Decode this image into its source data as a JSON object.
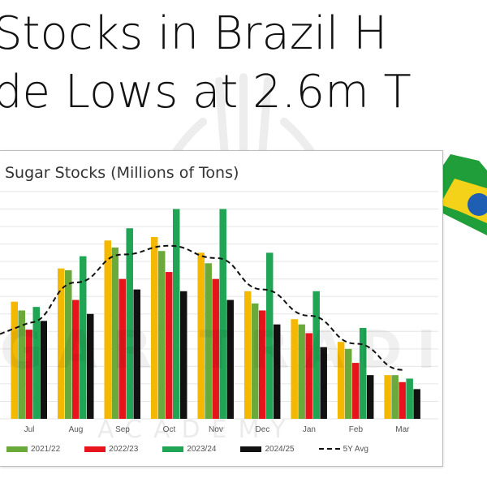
{
  "headline": {
    "line1": "Stocks in Brazil H",
    "line2": "de Lows at 2.6m T"
  },
  "watermark": {
    "text": "GAR TRADI",
    "subtext": "ACADEMY"
  },
  "colors": {
    "2021/22": "#6aaa3a",
    "2022/23": "#e8141c",
    "2023/24": "#1fa553",
    "2024/25": "#111111",
    "first_bar": "#f5b800",
    "avg": "#111111",
    "brazil_green": "#1f9e3a",
    "brazil_yellow": "#f4d21a"
  },
  "chart_data": {
    "type": "bar",
    "title": "Sugar Stocks (Millions of Tons)",
    "categories": [
      "Jul",
      "Aug",
      "Sep",
      "Oct",
      "Nov",
      "Dec",
      "Jan",
      "Feb",
      "Mar"
    ],
    "ylim": [
      0,
      13
    ],
    "grid": true,
    "legend_position": "bottom",
    "series": [
      {
        "name": "",
        "color": "#f5b800",
        "values": [
          6.7,
          8.6,
          10.2,
          10.4,
          9.5,
          7.3,
          5.7,
          4.4,
          2.5
        ]
      },
      {
        "name": "2021/22",
        "color": "#6aaa3a",
        "values": [
          6.2,
          8.5,
          9.8,
          9.6,
          8.9,
          6.6,
          5.4,
          4.0,
          2.5
        ]
      },
      {
        "name": "2022/23",
        "color": "#e8141c",
        "values": [
          5.1,
          6.8,
          8.0,
          8.4,
          8.0,
          6.2,
          4.9,
          3.2,
          2.1
        ]
      },
      {
        "name": "2023/24",
        "color": "#1fa553",
        "values": [
          6.4,
          9.3,
          10.9,
          12.0,
          12.0,
          9.5,
          7.3,
          5.2,
          2.3
        ]
      },
      {
        "name": "2024/25",
        "color": "#111111",
        "values": [
          5.6,
          6.0,
          7.4,
          7.3,
          6.8,
          5.4,
          4.1,
          2.5,
          1.7
        ]
      }
    ],
    "average": {
      "name": "5Y Avg",
      "style": "dashed",
      "values": [
        5.5,
        7.8,
        9.4,
        9.9,
        9.2,
        7.4,
        5.9,
        4.3,
        2.8
      ]
    },
    "legend": [
      "2021/22",
      "2022/23",
      "2023/24",
      "2024/25",
      "5Y Avg"
    ]
  }
}
